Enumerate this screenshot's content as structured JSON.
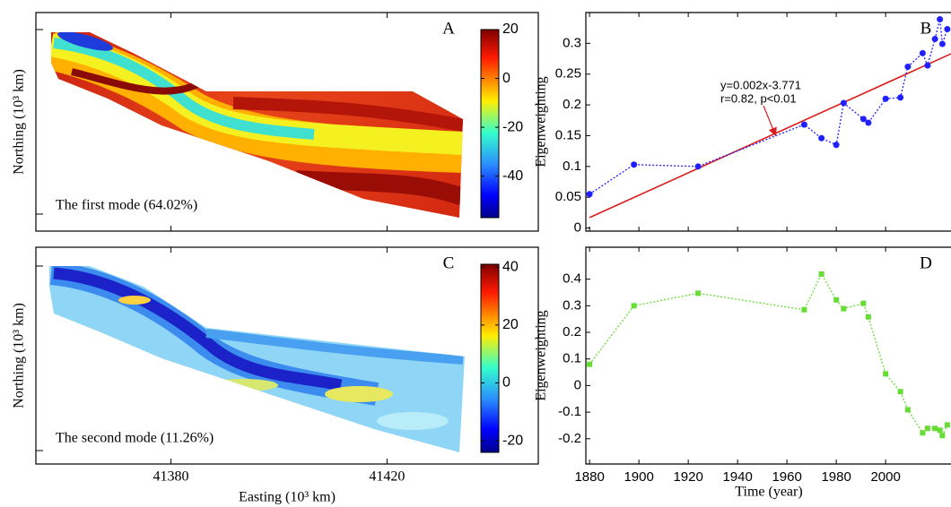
{
  "chart_data": [
    {
      "type": "map",
      "label": "A",
      "ylabel": "Northing (10³ km)",
      "annotation": "The first mode (64.02%)",
      "colorbar": {
        "lim": [
          -57,
          20
        ],
        "ticks": [
          20,
          0,
          -20,
          -40
        ]
      }
    },
    {
      "type": "line",
      "label": "B",
      "ylabel": "Eigenweighting",
      "xlim": [
        1878.5,
        2026.5
      ],
      "ylim": [
        -0.005,
        0.35
      ],
      "yticks": [
        0,
        0.05,
        0.1,
        0.15,
        0.2,
        0.25,
        0.3
      ],
      "x": [
        1880,
        1898,
        1924,
        1967,
        1974,
        1980,
        1983,
        1991,
        1993,
        2000,
        2006,
        2009,
        2015,
        2017,
        2020,
        2022,
        2023,
        2025
      ],
      "series": [
        {
          "color": "#1f1fff",
          "values": [
            0.055,
            0.103,
            0.1,
            0.168,
            0.146,
            0.135,
            0.203,
            0.177,
            0.171,
            0.21,
            0.212,
            0.262,
            0.284,
            0.264,
            0.307,
            0.339,
            0.299,
            0.323
          ]
        }
      ],
      "trend_line": {
        "x": [
          1880,
          2026.5
        ],
        "values": [
          0.017,
          0.283
        ],
        "color": "#dd1c1c"
      },
      "annotations": [
        "y=0.002x-3.771",
        "r=0.82, p<0.01"
      ]
    },
    {
      "type": "map",
      "label": "C",
      "ylabel": "Northing (10³ km)",
      "annotation": "The second mode (11.26%)",
      "xlabel": "Easting (10³ km)",
      "xlim": [
        41355,
        41448
      ],
      "xticks": [
        41380,
        41420
      ],
      "colorbar": {
        "lim": [
          -24,
          41
        ],
        "ticks": [
          40,
          20,
          0,
          -20
        ]
      }
    },
    {
      "type": "line",
      "label": "D",
      "ylabel": "Eigenweighting",
      "xlabel": "Time (year)",
      "xlim": [
        1878.5,
        2026.5
      ],
      "ylim": [
        -0.295,
        0.52
      ],
      "yticks": [
        -0.2,
        -0.1,
        0,
        0.1,
        0.2,
        0.3,
        0.4
      ],
      "xticks": [
        1880,
        1900,
        1920,
        1940,
        1960,
        1980,
        2000
      ],
      "x": [
        1880,
        1898,
        1924,
        1967,
        1974,
        1980,
        1983,
        1991,
        1993,
        2000,
        2006,
        2009,
        2015,
        2017,
        2020,
        2022,
        2023,
        2025
      ],
      "series": [
        {
          "color": "#66dd33",
          "values": [
            0.08,
            0.3,
            0.347,
            0.285,
            0.419,
            0.322,
            0.289,
            0.309,
            0.258,
            0.044,
            -0.023,
            -0.091,
            -0.178,
            -0.161,
            -0.161,
            -0.168,
            -0.188,
            -0.148
          ]
        }
      ]
    }
  ]
}
